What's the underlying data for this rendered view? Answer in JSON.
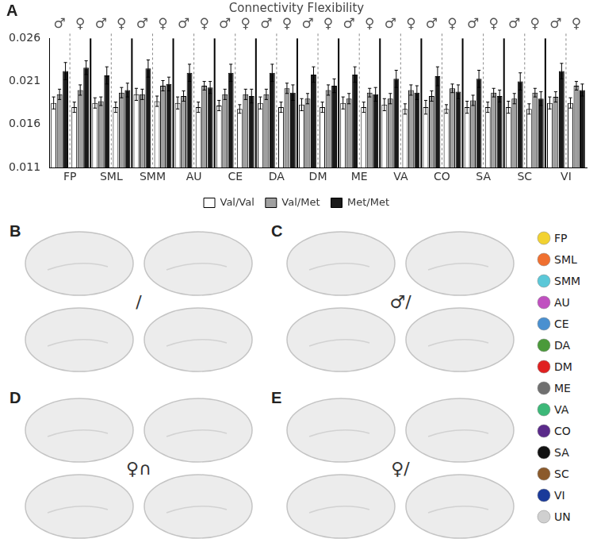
{
  "chart_data": {
    "type": "bar",
    "panel": "A",
    "title": "Connectivity Flexibility",
    "groups": [
      "FP",
      "SML",
      "SMM",
      "AU",
      "CE",
      "DA",
      "DM",
      "ME",
      "VA",
      "CO",
      "SA",
      "SC",
      "VI"
    ],
    "categories": [
      "♂",
      "♀",
      "♂",
      "♀",
      "♂",
      "♀",
      "♂",
      "♀",
      "♂",
      "♀",
      "♂",
      "♀",
      "♂",
      "♀",
      "♂",
      "♀",
      "♂",
      "♀",
      "♂",
      "♀",
      "♂",
      "♀",
      "♂",
      "♀",
      "♂",
      "♀"
    ],
    "series": [
      {
        "name": "Val/Val",
        "color": "#ffffff",
        "values": [
          0.0185,
          0.018,
          0.0185,
          0.018,
          0.0195,
          0.0187,
          0.0185,
          0.018,
          0.0182,
          0.0178,
          0.0185,
          0.018,
          0.0183,
          0.018,
          0.0185,
          0.018,
          0.0183,
          0.0178,
          0.018,
          0.0178,
          0.018,
          0.018,
          0.018,
          0.0178,
          0.0185,
          0.0185
        ],
        "errors": [
          0.0007,
          0.0006,
          0.0006,
          0.0006,
          0.0007,
          0.0006,
          0.0007,
          0.0006,
          0.0006,
          0.0005,
          0.0007,
          0.0006,
          0.0007,
          0.0006,
          0.0007,
          0.0006,
          0.0007,
          0.0006,
          0.0008,
          0.0005,
          0.0007,
          0.0006,
          0.0007,
          0.0006,
          0.0007,
          0.0006
        ]
      },
      {
        "name": "Val/Met",
        "color": "#a0a0a0",
        "values": [
          0.0195,
          0.02,
          0.0187,
          0.0197,
          0.0195,
          0.0205,
          0.0193,
          0.0205,
          0.0195,
          0.0195,
          0.0195,
          0.0202,
          0.019,
          0.02,
          0.019,
          0.0197,
          0.019,
          0.02,
          0.0193,
          0.0202,
          0.0188,
          0.0197,
          0.019,
          0.0197,
          0.0192,
          0.0205
        ],
        "errors": [
          0.0006,
          0.0006,
          0.0005,
          0.0006,
          0.0006,
          0.0006,
          0.0006,
          0.0005,
          0.0006,
          0.0006,
          0.0006,
          0.0006,
          0.0006,
          0.0006,
          0.0006,
          0.0005,
          0.0006,
          0.0006,
          0.0006,
          0.0005,
          0.0006,
          0.0005,
          0.0006,
          0.0005,
          0.0006,
          0.0005
        ]
      },
      {
        "name": "Met/Met",
        "color": "#1a1a1a",
        "values": [
          0.0222,
          0.0226,
          0.0217,
          0.02,
          0.0225,
          0.0207,
          0.022,
          0.0203,
          0.022,
          0.0193,
          0.022,
          0.0197,
          0.0218,
          0.0205,
          0.0218,
          0.0195,
          0.0213,
          0.0197,
          0.0216,
          0.0198,
          0.0213,
          0.0193,
          0.021,
          0.019,
          0.0222,
          0.02
        ],
        "errors": [
          0.001,
          0.0008,
          0.001,
          0.0008,
          0.001,
          0.0008,
          0.001,
          0.0007,
          0.001,
          0.0008,
          0.001,
          0.0009,
          0.0009,
          0.0008,
          0.0009,
          0.0008,
          0.001,
          0.0008,
          0.0011,
          0.0008,
          0.001,
          0.0007,
          0.001,
          0.0008,
          0.0009,
          0.0007
        ]
      }
    ],
    "ylim": [
      0.011,
      0.026
    ],
    "yticks": [
      0.011,
      0.016,
      0.021,
      0.026
    ],
    "grid": false,
    "legend": "bottom"
  },
  "brain_panels": [
    {
      "letter": "B",
      "label": "/"
    },
    {
      "letter": "C",
      "label": "♂/"
    },
    {
      "letter": "D",
      "label": "♀∩"
    },
    {
      "letter": "E",
      "label": "♀/"
    }
  ],
  "network_legend": [
    {
      "name": "FP",
      "color": "#f2d230"
    },
    {
      "name": "SML",
      "color": "#f07030"
    },
    {
      "name": "SMM",
      "color": "#5bc8d8"
    },
    {
      "name": "AU",
      "color": "#c050c0"
    },
    {
      "name": "CE",
      "color": "#4a90d0"
    },
    {
      "name": "DA",
      "color": "#4a9a3a"
    },
    {
      "name": "DM",
      "color": "#e02020"
    },
    {
      "name": "ME",
      "color": "#707070"
    },
    {
      "name": "VA",
      "color": "#3cb878"
    },
    {
      "name": "CO",
      "color": "#5a2a8a"
    },
    {
      "name": "SA",
      "color": "#111111"
    },
    {
      "name": "SC",
      "color": "#8b5a2b"
    },
    {
      "name": "VI",
      "color": "#1a3a9a"
    },
    {
      "name": "UN",
      "color": "#d0d0d0"
    }
  ]
}
